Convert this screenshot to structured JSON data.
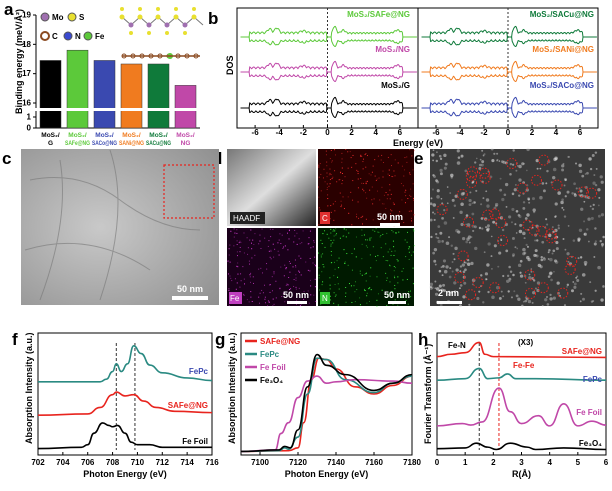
{
  "panels": {
    "a": "a",
    "b": "b",
    "c": "c",
    "d": "d",
    "e": "e",
    "f": "f",
    "g": "g",
    "h": "h"
  },
  "colors": {
    "black": "#000000",
    "green": "#5cc93a",
    "blue": "#3a49b0",
    "orange": "#f07b1f",
    "dkgreen": "#0f7a3a",
    "magenta": "#c048a8",
    "red": "#e8241e",
    "teal": "#2a8a82"
  },
  "legend_a": [
    "Mo",
    "S",
    "C",
    "N",
    "Fe"
  ],
  "scalebars": {
    "c": "50 nm",
    "d_c": "50 nm",
    "d_fe": "50 nm",
    "d_n": "50 nm",
    "e": "2 nm"
  },
  "mapping_labels": {
    "haadf": "HAADF",
    "c": "C",
    "fe": "Fe",
    "n": "N"
  },
  "chart_data": [
    {
      "panel": "a",
      "type": "bar",
      "ylabel": "Binding energy (meV/Å²)",
      "yticks": [
        0,
        1,
        16,
        17,
        18,
        19
      ],
      "axis_break": true,
      "categories": [
        "MoS2/ G",
        "MoS2/ SAFe@NG",
        "MoS2/ SACo@NG",
        "MoS2/ SANi@NG",
        "MoS2/ SACu@NG",
        "MoS2/ NG"
      ],
      "category_lines": [
        [
          "MoS₂/",
          "G"
        ],
        [
          "MoS₂/",
          "SAFe@NG"
        ],
        [
          "MoS₂/",
          "SACo@NG"
        ],
        [
          "MoS₂/",
          "SANi@NG"
        ],
        [
          "MoS₂/",
          "SACu@NG"
        ],
        [
          "MoS₂/",
          "NG"
        ]
      ],
      "values": [
        17.45,
        17.8,
        17.45,
        17.33,
        17.33,
        16.6
      ],
      "colors": [
        "#000000",
        "#5cc93a",
        "#3a49b0",
        "#f07b1f",
        "#0f7a3a",
        "#c048a8"
      ]
    },
    {
      "panel": "b",
      "type": "line",
      "xlabel": "Energy (eV)",
      "ylabel": "DOS",
      "xlim": [
        -7.5,
        7.5
      ],
      "xticks": [
        -6,
        -4,
        -2,
        0,
        2,
        4,
        6
      ],
      "left": [
        {
          "name": "MoS₂/SAFe@NG",
          "color": "#5cc93a"
        },
        {
          "name": "MoS₂/NG",
          "color": "#c048a8"
        },
        {
          "name": "MoS₂/G",
          "color": "#000000"
        }
      ],
      "right": [
        {
          "name": "MoS₂/SACu@NG",
          "color": "#0f7a3a"
        },
        {
          "name": "MoS₂/SANi@NG",
          "color": "#f07b1f"
        },
        {
          "name": "MoS₂/SACo@NG",
          "color": "#3a49b0"
        }
      ]
    },
    {
      "panel": "f",
      "type": "line",
      "xlabel": "Photon Energy (eV)",
      "ylabel": "Absorption Intensity (a.u.)",
      "xlim": [
        702,
        716
      ],
      "xticks": [
        702,
        704,
        706,
        708,
        710,
        712,
        714,
        716
      ],
      "ylim": [
        -0.05,
        0.9
      ],
      "vlines": [
        708.3,
        709.8
      ],
      "series": [
        {
          "name": "FePc",
          "color": "#2a8a82",
          "label_color": "#3a49b0",
          "points": [
            [
              702,
              0.52
            ],
            [
              707,
              0.52
            ],
            [
              707.5,
              0.54
            ],
            [
              708,
              0.6
            ],
            [
              708.3,
              0.66
            ],
            [
              708.7,
              0.6
            ],
            [
              709.2,
              0.66
            ],
            [
              709.7,
              0.8
            ],
            [
              710.3,
              0.74
            ],
            [
              711,
              0.65
            ],
            [
              712,
              0.59
            ],
            [
              714,
              0.55
            ],
            [
              716,
              0.53
            ]
          ]
        },
        {
          "name": "SAFe@NG",
          "color": "#e8241e",
          "label_color": "#e8241e",
          "points": [
            [
              702,
              0.26
            ],
            [
              706,
              0.27
            ],
            [
              707,
              0.32
            ],
            [
              708,
              0.42
            ],
            [
              708.3,
              0.44
            ],
            [
              709,
              0.41
            ],
            [
              709.7,
              0.42
            ],
            [
              710.5,
              0.37
            ],
            [
              711.5,
              0.32
            ],
            [
              713,
              0.29
            ],
            [
              716,
              0.28
            ]
          ]
        },
        {
          "name": "Fe Foil",
          "color": "#000000",
          "label_color": "#000000",
          "points": [
            [
              702,
              0
            ],
            [
              705.5,
              0.01
            ],
            [
              706,
              0.03
            ],
            [
              706.5,
              0.12
            ],
            [
              707.2,
              0.2
            ],
            [
              707.7,
              0.18
            ],
            [
              708,
              0.17
            ],
            [
              708.4,
              0.18
            ],
            [
              709,
              0.12
            ],
            [
              709.5,
              0.05
            ],
            [
              710,
              0.03
            ],
            [
              711,
              0.03
            ],
            [
              712,
              0.01
            ],
            [
              716,
              0.01
            ]
          ]
        }
      ]
    },
    {
      "panel": "g",
      "type": "line",
      "xlabel": "Photon Energy (eV)",
      "ylabel": "Absorption Intensity (a.u.)",
      "xlim": [
        7090,
        7180
      ],
      "xticks": [
        7100,
        7120,
        7140,
        7160,
        7180
      ],
      "ylim": [
        -0.05,
        1.65
      ],
      "legend": "top-left",
      "series": [
        {
          "name": "SAFe@NG",
          "color": "#e8241e",
          "points": [
            [
              7090,
              0
            ],
            [
              7115,
              0.01
            ],
            [
              7120,
              0.05
            ],
            [
              7123,
              0.4
            ],
            [
              7127,
              1.0
            ],
            [
              7131,
              1.3
            ],
            [
              7135,
              1.28
            ],
            [
              7140,
              1.15
            ],
            [
              7150,
              0.9
            ],
            [
              7160,
              0.8
            ],
            [
              7170,
              0.92
            ],
            [
              7180,
              1.05
            ]
          ]
        },
        {
          "name": "FePc",
          "color": "#2a8a82",
          "points": [
            [
              7090,
              0
            ],
            [
              7110,
              0.01
            ],
            [
              7113,
              0.05
            ],
            [
              7115,
              0.03
            ],
            [
              7120,
              0.2
            ],
            [
              7125,
              0.8
            ],
            [
              7130,
              1.3
            ],
            [
              7135,
              1.28
            ],
            [
              7145,
              1.0
            ],
            [
              7160,
              0.82
            ],
            [
              7170,
              0.95
            ],
            [
              7180,
              1.05
            ]
          ]
        },
        {
          "name": "Fe Foil",
          "color": "#c048a8",
          "points": [
            [
              7090,
              0
            ],
            [
              7108,
              0.02
            ],
            [
              7111,
              0.25
            ],
            [
              7115,
              0.4
            ],
            [
              7120,
              0.75
            ],
            [
              7125,
              0.98
            ],
            [
              7130,
              1.05
            ],
            [
              7135,
              0.95
            ],
            [
              7140,
              0.97
            ],
            [
              7150,
              1.0
            ],
            [
              7170,
              0.98
            ],
            [
              7180,
              0.95
            ]
          ]
        },
        {
          "name": "Fe₃O₄",
          "color": "#000000",
          "points": [
            [
              7090,
              0
            ],
            [
              7110,
              0.02
            ],
            [
              7113,
              0.07
            ],
            [
              7116,
              0.05
            ],
            [
              7120,
              0.3
            ],
            [
              7125,
              0.9
            ],
            [
              7130,
              1.35
            ],
            [
              7135,
              1.2
            ],
            [
              7145,
              1.07
            ],
            [
              7160,
              0.85
            ],
            [
              7170,
              0.95
            ],
            [
              7180,
              1.07
            ]
          ]
        }
      ]
    },
    {
      "panel": "h",
      "type": "line",
      "xlabel": "R(Å)",
      "ylabel": "Fourier Transform (Å⁻¹)",
      "xlim": [
        0,
        6
      ],
      "xticks": [
        0,
        1,
        2,
        3,
        4,
        5,
        6
      ],
      "ylim": [
        -0.05,
        1.5
      ],
      "annotations": {
        "fe_n": "Fe-N",
        "fe_fe": "Fe-Fe",
        "x3": "(X3)"
      },
      "vlines": [
        1.5,
        2.2
      ],
      "series": [
        {
          "name": "SAFe@NG",
          "color": "#e8241e",
          "points": [
            [
              0,
              1.2
            ],
            [
              0.5,
              1.23
            ],
            [
              1,
              1.25
            ],
            [
              1.5,
              1.38
            ],
            [
              1.7,
              1.23
            ],
            [
              2,
              1.2
            ],
            [
              6,
              1.19
            ]
          ]
        },
        {
          "name": "FePc",
          "color": "#2a8a82",
          "label_color": "#3a49b0",
          "points": [
            [
              0,
              0.9
            ],
            [
              1,
              0.92
            ],
            [
              1.5,
              1.05
            ],
            [
              1.8,
              0.92
            ],
            [
              2.2,
              0.93
            ],
            [
              2.5,
              0.98
            ],
            [
              2.8,
              0.92
            ],
            [
              3.5,
              0.92
            ],
            [
              6,
              0.9
            ]
          ]
        },
        {
          "name": "Fe Foil",
          "color": "#c048a8",
          "points": [
            [
              0,
              0.32
            ],
            [
              0.9,
              0.35
            ],
            [
              1.2,
              0.33
            ],
            [
              1.6,
              0.37
            ],
            [
              2.2,
              0.8
            ],
            [
              2.6,
              0.5
            ],
            [
              3,
              0.35
            ],
            [
              3.6,
              0.45
            ],
            [
              4,
              0.32
            ],
            [
              4.5,
              0.6
            ],
            [
              5,
              0.32
            ],
            [
              5.5,
              0.38
            ],
            [
              6,
              0.33
            ]
          ]
        },
        {
          "name": "Fe₃O₄",
          "color": "#000000",
          "points": [
            [
              0,
              0.03
            ],
            [
              1,
              0.04
            ],
            [
              1.4,
              0.1
            ],
            [
              1.8,
              0.05
            ],
            [
              2.1,
              0.02
            ],
            [
              2.6,
              0.1
            ],
            [
              3.2,
              0.05
            ],
            [
              3.5,
              0.02
            ],
            [
              4.5,
              0.04
            ],
            [
              6,
              0.02
            ]
          ]
        }
      ]
    }
  ]
}
